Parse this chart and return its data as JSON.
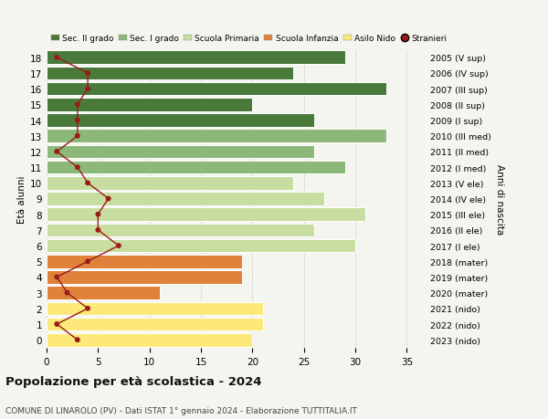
{
  "ages": [
    0,
    1,
    2,
    3,
    4,
    5,
    6,
    7,
    8,
    9,
    10,
    11,
    12,
    13,
    14,
    15,
    16,
    17,
    18
  ],
  "bar_values": [
    20,
    21,
    21,
    11,
    19,
    19,
    30,
    26,
    31,
    27,
    24,
    29,
    26,
    33,
    26,
    20,
    33,
    24,
    29
  ],
  "stranieri": [
    3,
    1,
    4,
    2,
    1,
    4,
    7,
    5,
    5,
    6,
    4,
    3,
    1,
    3,
    3,
    3,
    4,
    4,
    1
  ],
  "right_labels": [
    "2023 (nido)",
    "2022 (nido)",
    "2021 (nido)",
    "2020 (mater)",
    "2019 (mater)",
    "2018 (mater)",
    "2017 (I ele)",
    "2016 (II ele)",
    "2015 (III ele)",
    "2014 (IV ele)",
    "2013 (V ele)",
    "2012 (I med)",
    "2011 (II med)",
    "2010 (III med)",
    "2009 (I sup)",
    "2008 (II sup)",
    "2007 (III sup)",
    "2006 (IV sup)",
    "2005 (V sup)"
  ],
  "bar_colors": [
    "#fce97a",
    "#fce97a",
    "#fce97a",
    "#e0823a",
    "#e0823a",
    "#e0823a",
    "#c8dda0",
    "#c8dda0",
    "#c8dda0",
    "#c8dda0",
    "#c8dda0",
    "#8cb87a",
    "#8cb87a",
    "#8cb87a",
    "#4a7a3a",
    "#4a7a3a",
    "#4a7a3a",
    "#4a7a3a",
    "#4a7a3a"
  ],
  "legend_colors": [
    "#4a7a3a",
    "#8cb87a",
    "#c8dda0",
    "#e0823a",
    "#fce97a"
  ],
  "legend_labels": [
    "Sec. II grado",
    "Sec. I grado",
    "Scuola Primaria",
    "Scuola Infanzia",
    "Asilo Nido",
    "Stranieri"
  ],
  "stranieri_color": "#9b1a1a",
  "title": "Popolazione per età scolastica - 2024",
  "subtitle": "COMUNE DI LINAROLO (PV) - Dati ISTAT 1° gennaio 2024 - Elaborazione TUTTITALIA.IT",
  "anni_label": "Anni di nascita",
  "ylabel": "Età alunni",
  "xlim": [
    0,
    37
  ],
  "background_color": "#f5f5f0"
}
